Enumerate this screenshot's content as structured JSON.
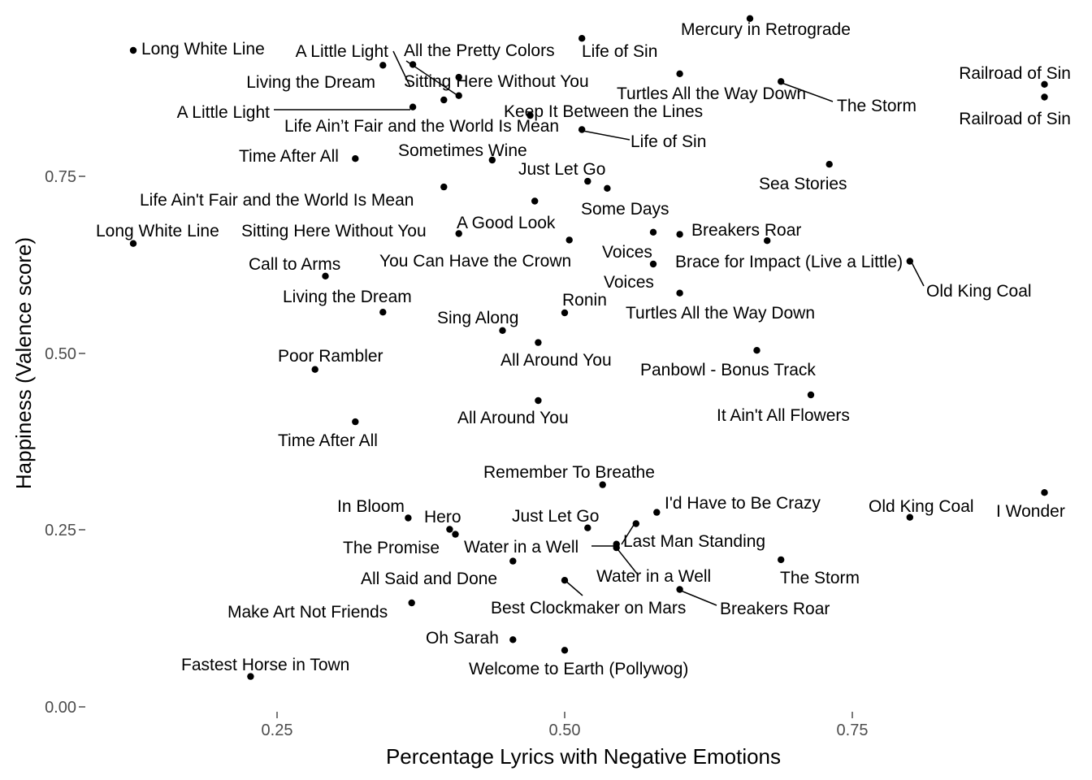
{
  "chart_data": {
    "type": "scatter",
    "xlabel": "Percentage Lyrics with Negative Emotions",
    "ylabel": "Happiness (Valence score)",
    "xlim": [
      0.06,
      0.99
    ],
    "ylim": [
      -0.005,
      0.95
    ],
    "x_ticks": [
      0.25,
      0.5,
      0.75
    ],
    "x_tick_labels": [
      "0.25",
      "0.50",
      "0.75"
    ],
    "y_ticks": [
      0.0,
      0.25,
      0.5,
      0.75
    ],
    "y_tick_labels": [
      "0.00",
      "0.25",
      "0.50",
      "0.75"
    ],
    "grid": false,
    "legend": "none",
    "point_color": "#000000",
    "points": [
      {
        "label": "Long White Line",
        "x": 0.125,
        "y": 0.928
      },
      {
        "label": "Long White Line",
        "x": 0.125,
        "y": 0.655
      },
      {
        "label": "A Little Light",
        "x": 0.368,
        "y": 0.908
      },
      {
        "label": "A Little Light",
        "x": 0.368,
        "y": 0.848
      },
      {
        "label": "All the Pretty Colors",
        "x": 0.408,
        "y": 0.89
      },
      {
        "label": "Living the Dream",
        "x": 0.342,
        "y": 0.907
      },
      {
        "label": "Living the Dream",
        "x": 0.342,
        "y": 0.558
      },
      {
        "label": "Sitting Here Without You",
        "x": 0.395,
        "y": 0.858
      },
      {
        "label": "Sitting Here Without You",
        "x": 0.408,
        "y": 0.669
      },
      {
        "label": "Life Ain’t Fair and the World Is Mean",
        "x": 0.408,
        "y": 0.864
      },
      {
        "label": "Life Ain't Fair and the World Is Mean",
        "x": 0.395,
        "y": 0.735
      },
      {
        "label": "Keep It Between the Lines",
        "x": 0.47,
        "y": 0.836
      },
      {
        "label": "Life of Sin",
        "x": 0.515,
        "y": 0.945
      },
      {
        "label": "Life of Sin",
        "x": 0.515,
        "y": 0.816
      },
      {
        "label": "Mercury in Retrograde",
        "x": 0.661,
        "y": 0.973
      },
      {
        "label": "Turtles All the Way Down",
        "x": 0.6,
        "y": 0.895
      },
      {
        "label": "Turtles All the Way Down",
        "x": 0.6,
        "y": 0.585
      },
      {
        "label": "The Storm",
        "x": 0.688,
        "y": 0.884
      },
      {
        "label": "The Storm",
        "x": 0.688,
        "y": 0.208
      },
      {
        "label": "Railroad of Sin",
        "x": 0.917,
        "y": 0.88
      },
      {
        "label": "Railroad of Sin",
        "x": 0.917,
        "y": 0.862
      },
      {
        "label": "Time After All",
        "x": 0.318,
        "y": 0.775
      },
      {
        "label": "Time After All",
        "x": 0.318,
        "y": 0.403
      },
      {
        "label": "Sometimes Wine",
        "x": 0.437,
        "y": 0.773
      },
      {
        "label": "Just Let Go",
        "x": 0.52,
        "y": 0.743
      },
      {
        "label": "Just Let Go",
        "x": 0.52,
        "y": 0.253
      },
      {
        "label": "Some Days",
        "x": 0.537,
        "y": 0.733
      },
      {
        "label": "Sea Stories",
        "x": 0.73,
        "y": 0.767
      },
      {
        "label": "A Good Look",
        "x": 0.474,
        "y": 0.715
      },
      {
        "label": "You Can Have the Crown",
        "x": 0.504,
        "y": 0.66
      },
      {
        "label": "Voices",
        "x": 0.577,
        "y": 0.671
      },
      {
        "label": "Voices",
        "x": 0.577,
        "y": 0.626
      },
      {
        "label": "Breakers Roar",
        "x": 0.6,
        "y": 0.668
      },
      {
        "label": "Breakers Roar",
        "x": 0.6,
        "y": 0.166
      },
      {
        "label": "Brace for Impact (Live a Little)",
        "x": 0.676,
        "y": 0.659
      },
      {
        "label": "Old King Coal",
        "x": 0.8,
        "y": 0.63
      },
      {
        "label": "Old King Coal",
        "x": 0.8,
        "y": 0.268
      },
      {
        "label": "Call to Arms",
        "x": 0.292,
        "y": 0.609
      },
      {
        "label": "Ronin",
        "x": 0.5,
        "y": 0.557
      },
      {
        "label": "Sing Along",
        "x": 0.446,
        "y": 0.532
      },
      {
        "label": "All Around You",
        "x": 0.477,
        "y": 0.515
      },
      {
        "label": "All Around You",
        "x": 0.477,
        "y": 0.433
      },
      {
        "label": "Poor Rambler",
        "x": 0.283,
        "y": 0.477
      },
      {
        "label": "Panbowl - Bonus Track",
        "x": 0.667,
        "y": 0.504
      },
      {
        "label": "It Ain't All Flowers",
        "x": 0.714,
        "y": 0.441
      },
      {
        "label": "Remember To Breathe",
        "x": 0.533,
        "y": 0.314
      },
      {
        "label": "I'd Have to Be Crazy",
        "x": 0.58,
        "y": 0.275
      },
      {
        "label": "I Wonder",
        "x": 0.917,
        "y": 0.303
      },
      {
        "label": "In Bloom",
        "x": 0.364,
        "y": 0.267
      },
      {
        "label": "Hero",
        "x": 0.4,
        "y": 0.251
      },
      {
        "label": "The Promise",
        "x": 0.405,
        "y": 0.244
      },
      {
        "label": "Water in a Well",
        "x": 0.545,
        "y": 0.23
      },
      {
        "label": "Water in a Well",
        "x": 0.545,
        "y": 0.225
      },
      {
        "label": "Last Man Standing",
        "x": 0.562,
        "y": 0.259
      },
      {
        "label": "All Said and Done",
        "x": 0.455,
        "y": 0.206
      },
      {
        "label": "Best Clockmaker on Mars",
        "x": 0.5,
        "y": 0.179
      },
      {
        "label": "Make Art Not Friends",
        "x": 0.367,
        "y": 0.147
      },
      {
        "label": "Oh Sarah",
        "x": 0.455,
        "y": 0.095
      },
      {
        "label": "Welcome to Earth (Pollywog)",
        "x": 0.5,
        "y": 0.08
      },
      {
        "label": "Fastest Horse in Town",
        "x": 0.227,
        "y": 0.043
      }
    ]
  }
}
